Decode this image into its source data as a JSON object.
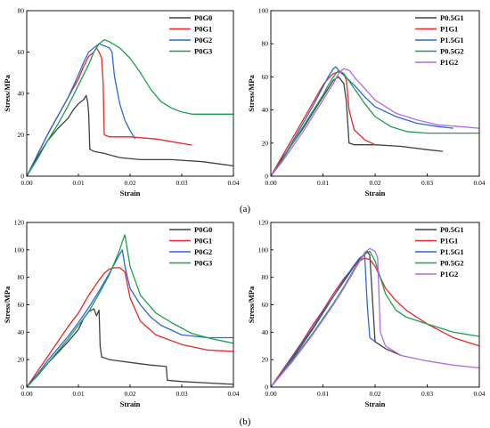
{
  "figure": {
    "captions": [
      "(a)",
      "(b)"
    ]
  },
  "chart_data": [
    {
      "type": "line",
      "panel": "a-left",
      "xlabel": "Strain",
      "ylabel": "Stress/MPa",
      "xlim": [
        0,
        0.04
      ],
      "ylim": [
        0,
        80
      ],
      "xticks": [
        0.0,
        0.01,
        0.02,
        0.03,
        0.04
      ],
      "xtick_labels": [
        "0.00",
        "0.01",
        "0.02",
        "0.03",
        "0.04"
      ],
      "yticks": [
        0,
        20,
        40,
        60,
        80
      ],
      "ytick_labels": [
        "0",
        "20",
        "40",
        "60",
        "80"
      ],
      "legend_position": "top-right",
      "series": [
        {
          "name": "P0G0",
          "color": "#404040",
          "x": [
            0,
            0.002,
            0.004,
            0.006,
            0.008,
            0.009,
            0.01,
            0.011,
            0.0115,
            0.0118,
            0.012,
            0.0122,
            0.013,
            0.015,
            0.018,
            0.022,
            0.028,
            0.034,
            0.04
          ],
          "y": [
            0,
            9,
            17,
            23,
            28,
            32,
            35,
            37,
            39,
            36,
            30,
            13,
            12,
            11,
            9,
            8,
            8,
            7,
            5
          ]
        },
        {
          "name": "P0G1",
          "color": "#e8272a",
          "x": [
            0,
            0.002,
            0.004,
            0.006,
            0.008,
            0.01,
            0.011,
            0.012,
            0.013,
            0.0135,
            0.014,
            0.0145,
            0.0148,
            0.015,
            0.016,
            0.02,
            0.025,
            0.032
          ],
          "y": [
            0,
            10,
            20,
            29,
            38,
            47,
            53,
            58,
            60,
            62,
            60,
            57,
            45,
            20,
            19,
            19,
            18,
            15
          ]
        },
        {
          "name": "P0G2",
          "color": "#2a6ad8",
          "x": [
            0,
            0.002,
            0.004,
            0.006,
            0.008,
            0.01,
            0.011,
            0.012,
            0.013,
            0.014,
            0.015,
            0.016,
            0.0165,
            0.017,
            0.018,
            0.019,
            0.02,
            0.021
          ],
          "y": [
            0,
            10,
            20,
            29,
            38,
            49,
            55,
            60,
            62,
            64,
            63,
            62,
            60,
            48,
            35,
            27,
            22,
            18
          ]
        },
        {
          "name": "P0G3",
          "color": "#1f9e4f",
          "x": [
            0,
            0.002,
            0.004,
            0.006,
            0.008,
            0.01,
            0.012,
            0.013,
            0.014,
            0.015,
            0.016,
            0.018,
            0.02,
            0.022,
            0.024,
            0.026,
            0.028,
            0.03,
            0.032,
            0.035,
            0.04
          ],
          "y": [
            0,
            8,
            17,
            25,
            34,
            44,
            54,
            60,
            64,
            66,
            65,
            62,
            57,
            50,
            42,
            36,
            33,
            31,
            30,
            30,
            30
          ]
        }
      ]
    },
    {
      "type": "line",
      "panel": "a-right",
      "xlabel": "Strain",
      "ylabel": "Stress/MPa",
      "xlim": [
        0,
        0.04
      ],
      "ylim": [
        0,
        100
      ],
      "xticks": [
        0.0,
        0.01,
        0.02,
        0.03,
        0.04
      ],
      "xtick_labels": [
        "0.00",
        "0.01",
        "0.02",
        "0.03",
        "0.04"
      ],
      "yticks": [
        0,
        20,
        40,
        60,
        80,
        100
      ],
      "ytick_labels": [
        "0",
        "20",
        "40",
        "60",
        "80",
        "100"
      ],
      "legend_position": "top-right",
      "series": [
        {
          "name": "P0.5G1",
          "color": "#404040",
          "x": [
            0,
            0.002,
            0.004,
            0.006,
            0.008,
            0.01,
            0.011,
            0.012,
            0.013,
            0.014,
            0.0145,
            0.015,
            0.016,
            0.02,
            0.025,
            0.03,
            0.033
          ],
          "y": [
            0,
            10,
            19,
            28,
            38,
            48,
            53,
            58,
            60,
            56,
            45,
            20,
            19,
            19,
            18,
            16,
            15
          ]
        },
        {
          "name": "P1G1",
          "color": "#e8272a",
          "x": [
            0,
            0.002,
            0.004,
            0.006,
            0.008,
            0.01,
            0.011,
            0.012,
            0.013,
            0.014,
            0.0145,
            0.015,
            0.016,
            0.018,
            0.02
          ],
          "y": [
            0,
            11,
            22,
            33,
            44,
            55,
            59,
            62,
            63,
            62,
            58,
            40,
            28,
            22,
            19
          ]
        },
        {
          "name": "P1.5G1",
          "color": "#2a6ad8",
          "x": [
            0,
            0.002,
            0.004,
            0.006,
            0.008,
            0.01,
            0.011,
            0.012,
            0.0125,
            0.013,
            0.014,
            0.016,
            0.018,
            0.02,
            0.024,
            0.028,
            0.032,
            0.035
          ],
          "y": [
            0,
            9,
            20,
            31,
            42,
            54,
            60,
            65,
            66,
            64,
            61,
            55,
            48,
            42,
            36,
            32,
            30,
            29
          ]
        },
        {
          "name": "P0.5G2",
          "color": "#1f9e4f",
          "x": [
            0,
            0.002,
            0.004,
            0.006,
            0.008,
            0.01,
            0.011,
            0.012,
            0.013,
            0.014,
            0.016,
            0.018,
            0.02,
            0.023,
            0.026,
            0.03,
            0.035,
            0.04
          ],
          "y": [
            0,
            9,
            19,
            29,
            39,
            49,
            55,
            60,
            64,
            62,
            53,
            44,
            36,
            30,
            27,
            26,
            26,
            26
          ]
        },
        {
          "name": "P1G2",
          "color": "#b36ae2",
          "x": [
            0,
            0.002,
            0.004,
            0.006,
            0.008,
            0.01,
            0.012,
            0.013,
            0.014,
            0.015,
            0.016,
            0.018,
            0.02,
            0.024,
            0.028,
            0.032,
            0.036,
            0.04
          ],
          "y": [
            0,
            8,
            17,
            26,
            36,
            46,
            56,
            62,
            65,
            64,
            60,
            53,
            46,
            38,
            34,
            31,
            30,
            29
          ]
        }
      ]
    },
    {
      "type": "line",
      "panel": "b-left",
      "xlabel": "Strain",
      "ylabel": "Stress/MPa",
      "xlim": [
        0,
        0.04
      ],
      "ylim": [
        0,
        120
      ],
      "xticks": [
        0.0,
        0.01,
        0.02,
        0.03,
        0.04
      ],
      "xtick_labels": [
        "0.00",
        "0.01",
        "0.02",
        "0.03",
        "0.04"
      ],
      "yticks": [
        0,
        20,
        40,
        60,
        80,
        100,
        120
      ],
      "ytick_labels": [
        "0",
        "20",
        "40",
        "60",
        "80",
        "100",
        "120"
      ],
      "legend_position": "top-right",
      "series": [
        {
          "name": "P0G0",
          "color": "#404040",
          "x": [
            0,
            0.002,
            0.004,
            0.006,
            0.008,
            0.01,
            0.011,
            0.012,
            0.013,
            0.0135,
            0.014,
            0.0142,
            0.0145,
            0.016,
            0.02,
            0.024,
            0.027,
            0.0272,
            0.03,
            0.035,
            0.04
          ],
          "y": [
            0,
            8,
            17,
            25,
            33,
            42,
            50,
            55,
            57,
            52,
            56,
            30,
            22,
            20,
            18,
            16,
            15,
            5,
            4,
            3,
            2
          ]
        },
        {
          "name": "P0G1",
          "color": "#e8272a",
          "x": [
            0,
            0.002,
            0.004,
            0.006,
            0.008,
            0.01,
            0.012,
            0.014,
            0.015,
            0.016,
            0.017,
            0.018,
            0.019,
            0.02,
            0.022,
            0.025,
            0.03,
            0.035,
            0.04
          ],
          "y": [
            0,
            11,
            22,
            33,
            44,
            54,
            67,
            78,
            83,
            86,
            87,
            87,
            84,
            65,
            48,
            38,
            31,
            27,
            26
          ]
        },
        {
          "name": "P0G2",
          "color": "#2a6ad8",
          "x": [
            0,
            0.002,
            0.004,
            0.006,
            0.008,
            0.01,
            0.012,
            0.014,
            0.016,
            0.017,
            0.018,
            0.0185,
            0.019,
            0.02,
            0.022,
            0.024,
            0.026,
            0.03,
            0.035,
            0.04
          ],
          "y": [
            0,
            9,
            19,
            28,
            37,
            47,
            58,
            70,
            83,
            90,
            97,
            100,
            88,
            72,
            60,
            51,
            45,
            38,
            36,
            36
          ]
        },
        {
          "name": "P0G3",
          "color": "#1f9e4f",
          "x": [
            0,
            0.002,
            0.004,
            0.006,
            0.008,
            0.01,
            0.012,
            0.014,
            0.016,
            0.018,
            0.0185,
            0.019,
            0.02,
            0.022,
            0.025,
            0.028,
            0.032,
            0.036,
            0.04
          ],
          "y": [
            0,
            8,
            17,
            26,
            35,
            45,
            55,
            68,
            82,
            100,
            106,
            111,
            88,
            67,
            54,
            47,
            39,
            35,
            32
          ]
        }
      ]
    },
    {
      "type": "line",
      "panel": "b-right",
      "xlabel": "Strain",
      "ylabel": "Stress/MPa",
      "xlim": [
        0,
        0.04
      ],
      "ylim": [
        0,
        120
      ],
      "xticks": [
        0.0,
        0.01,
        0.02,
        0.03,
        0.04
      ],
      "xtick_labels": [
        "0.00",
        "0.01",
        "0.02",
        "0.03",
        "0.04"
      ],
      "yticks": [
        0,
        20,
        40,
        60,
        80,
        100,
        120
      ],
      "ytick_labels": [
        "0",
        "20",
        "40",
        "60",
        "80",
        "100",
        "120"
      ],
      "legend_position": "top-right",
      "series": [
        {
          "name": "P0.5G1",
          "color": "#404040",
          "x": [
            0,
            0.002,
            0.004,
            0.006,
            0.008,
            0.01,
            0.012,
            0.014,
            0.016,
            0.017,
            0.018,
            0.0185,
            0.019,
            0.02,
            0.022,
            0.025
          ],
          "y": [
            0,
            10,
            20,
            31,
            42,
            54,
            66,
            77,
            88,
            93,
            97,
            99,
            96,
            33,
            28,
            23
          ]
        },
        {
          "name": "P1G1",
          "color": "#e8272a",
          "x": [
            0,
            0.002,
            0.004,
            0.006,
            0.008,
            0.01,
            0.012,
            0.014,
            0.016,
            0.017,
            0.018,
            0.019,
            0.02,
            0.022,
            0.024,
            0.026,
            0.03,
            0.035,
            0.04
          ],
          "y": [
            0,
            11,
            22,
            33,
            45,
            56,
            68,
            79,
            88,
            92,
            94,
            93,
            88,
            72,
            63,
            56,
            46,
            36,
            30
          ]
        },
        {
          "name": "P1.5G1",
          "color": "#2a6ad8",
          "x": [
            0,
            0.002,
            0.004,
            0.006,
            0.008,
            0.01,
            0.012,
            0.014,
            0.016,
            0.017,
            0.018,
            0.0185,
            0.019,
            0.02
          ],
          "y": [
            0,
            10,
            21,
            32,
            43,
            55,
            66,
            78,
            89,
            94,
            97,
            60,
            36,
            33
          ]
        },
        {
          "name": "P0.5G2",
          "color": "#1f9e4f",
          "x": [
            0,
            0.002,
            0.004,
            0.006,
            0.008,
            0.01,
            0.012,
            0.014,
            0.016,
            0.018,
            0.019,
            0.02,
            0.022,
            0.024,
            0.026,
            0.03,
            0.035,
            0.04
          ],
          "y": [
            0,
            9,
            19,
            29,
            39,
            50,
            61,
            73,
            86,
            97,
            99,
            92,
            68,
            56,
            51,
            46,
            40,
            37
          ]
        },
        {
          "name": "P1G2",
          "color": "#b36ae2",
          "x": [
            0,
            0.002,
            0.004,
            0.006,
            0.008,
            0.01,
            0.012,
            0.014,
            0.016,
            0.018,
            0.019,
            0.02,
            0.0205,
            0.021,
            0.022,
            0.025,
            0.03,
            0.035,
            0.04
          ],
          "y": [
            0,
            9,
            18,
            28,
            38,
            49,
            60,
            72,
            85,
            98,
            101,
            99,
            94,
            40,
            30,
            23,
            19,
            16,
            14
          ]
        }
      ]
    }
  ]
}
